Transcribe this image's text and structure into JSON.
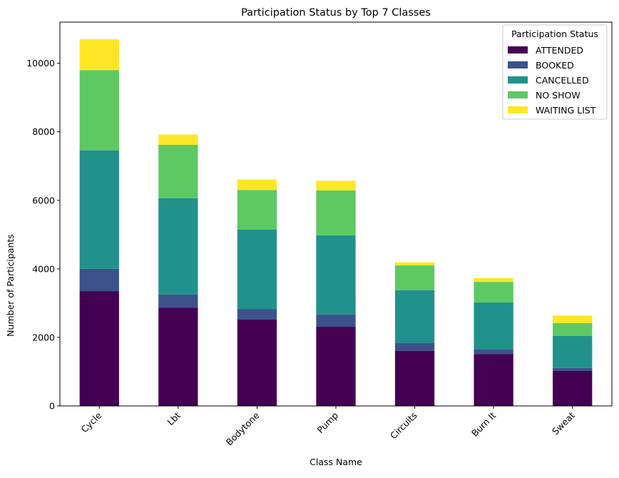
{
  "chart_data": {
    "type": "bar",
    "stacked": true,
    "title": "Participation Status by Top 7 Classes",
    "xlabel": "Class Name",
    "ylabel": "Number of Participants",
    "ylim": [
      0,
      11200
    ],
    "yticks": [
      0,
      2000,
      4000,
      6000,
      8000,
      10000
    ],
    "grid": false,
    "legend": {
      "title": "Participation Status",
      "placement": "top-right"
    },
    "categories": [
      "Cycle",
      "Lbt",
      "Bodytone",
      "Pump",
      "Circuits",
      "Burn It",
      "Sweat"
    ],
    "series": [
      {
        "name": "ATTENDED",
        "color": "#440154",
        "values": [
          3350,
          2870,
          2520,
          2310,
          1610,
          1510,
          1020
        ]
      },
      {
        "name": "BOOKED",
        "color": "#3b528b",
        "values": [
          650,
          380,
          310,
          360,
          230,
          150,
          90
        ]
      },
      {
        "name": "CANCELLED",
        "color": "#21918c",
        "values": [
          3460,
          2810,
          2320,
          2310,
          1540,
          1360,
          930
        ]
      },
      {
        "name": "NO SHOW",
        "color": "#5ec962",
        "values": [
          2340,
          1560,
          1150,
          1310,
          720,
          600,
          380
        ]
      },
      {
        "name": "WAITING LIST",
        "color": "#fde725",
        "values": [
          900,
          300,
          310,
          280,
          90,
          110,
          220
        ]
      }
    ]
  }
}
